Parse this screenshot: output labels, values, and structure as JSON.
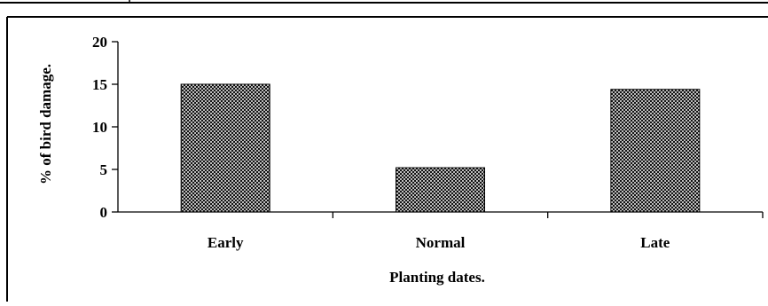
{
  "chart_data": {
    "type": "bar",
    "categories": [
      "Early",
      "Normal",
      "Late"
    ],
    "values": [
      15.0,
      5.2,
      14.4
    ],
    "title": "",
    "xlabel": "Planting dates.",
    "ylabel": "% of bird damage.",
    "ylim": [
      0,
      20
    ],
    "yticks": [
      0,
      5,
      10,
      15,
      20
    ],
    "grid": false,
    "legend": "none",
    "bar_fill": "crosshatch-pattern",
    "colors": {
      "bar": "#000000",
      "background": "#ffffff"
    }
  }
}
